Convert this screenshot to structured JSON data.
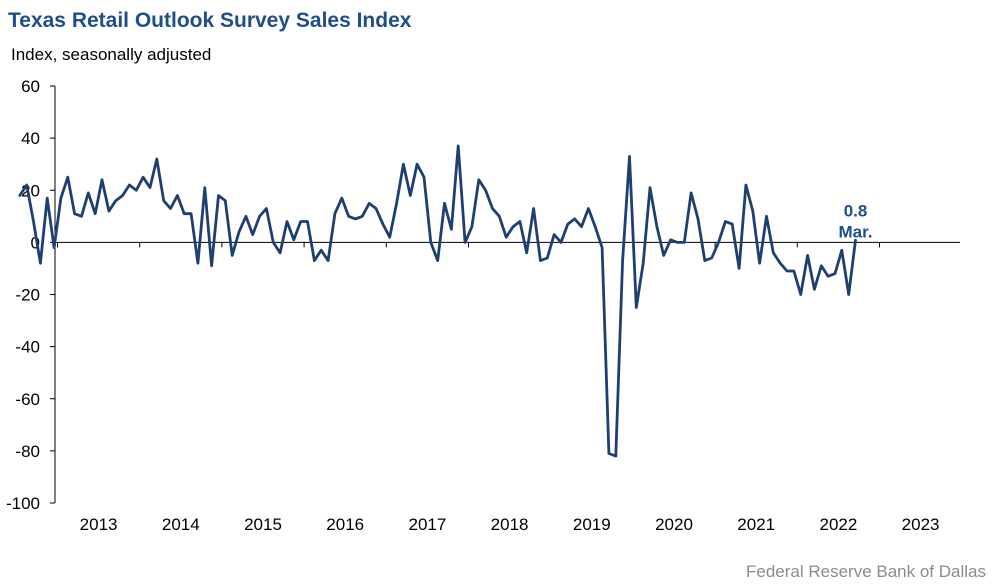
{
  "title": "Texas Retail Outlook Survey Sales Index",
  "subtitle": "Index, seasonally adjusted",
  "source": "Federal Reserve Bank of Dallas",
  "colors": {
    "line": "#1f3f73",
    "title": "#1f4e8c",
    "annotation": "#1f4e8c",
    "source": "#8c8c8c"
  },
  "chart_data": {
    "type": "line",
    "title": "Texas Retail Outlook Survey Sales Index",
    "ylabel": "Index, seasonally adjusted",
    "xlabel": "",
    "ylim": [
      -100,
      60
    ],
    "yticks": [
      60,
      40,
      20,
      0,
      -20,
      -40,
      -60,
      -80,
      -100
    ],
    "xtick_labels": [
      "2013",
      "2014",
      "2015",
      "2016",
      "2017",
      "2018",
      "2019",
      "2020",
      "2021",
      "2022",
      "2023"
    ],
    "grid": false,
    "start": "2012-07",
    "end": "2023-03",
    "series": [
      {
        "values": [
          18,
          22,
          8,
          -8,
          17,
          -2,
          17,
          25,
          11,
          10,
          19,
          11,
          24,
          12,
          16,
          18,
          22,
          20,
          25,
          21,
          32,
          16,
          13,
          18,
          11,
          11,
          -8,
          21,
          -9,
          18,
          16,
          -5,
          4,
          10,
          3,
          10,
          13,
          0,
          -4,
          8,
          1,
          8,
          8,
          -7,
          -3,
          -7,
          11,
          17,
          10,
          9,
          10,
          15,
          13,
          7,
          2,
          15,
          30,
          18,
          30,
          25,
          0,
          -7,
          15,
          5,
          37,
          0,
          6,
          24,
          20,
          13,
          10,
          2,
          6,
          8,
          -4,
          13,
          -7,
          -6,
          3,
          0,
          7,
          9,
          6,
          13,
          6,
          -2,
          -81,
          -82,
          -7,
          33,
          -25,
          -8,
          21,
          6,
          -5,
          1,
          0,
          0,
          19,
          9,
          -7,
          -6,
          0,
          8,
          7,
          -10,
          22,
          12,
          -8,
          10,
          -4,
          -8,
          -11,
          -11,
          -20,
          -5,
          -18,
          -9,
          -13,
          -12,
          -3,
          -20,
          0.8
        ]
      }
    ],
    "annotations": [
      {
        "text": "0.8",
        "x": "2023-03",
        "y": 0.8
      },
      {
        "text": "Mar.",
        "x": "2023-03",
        "y": 0.8
      }
    ]
  }
}
